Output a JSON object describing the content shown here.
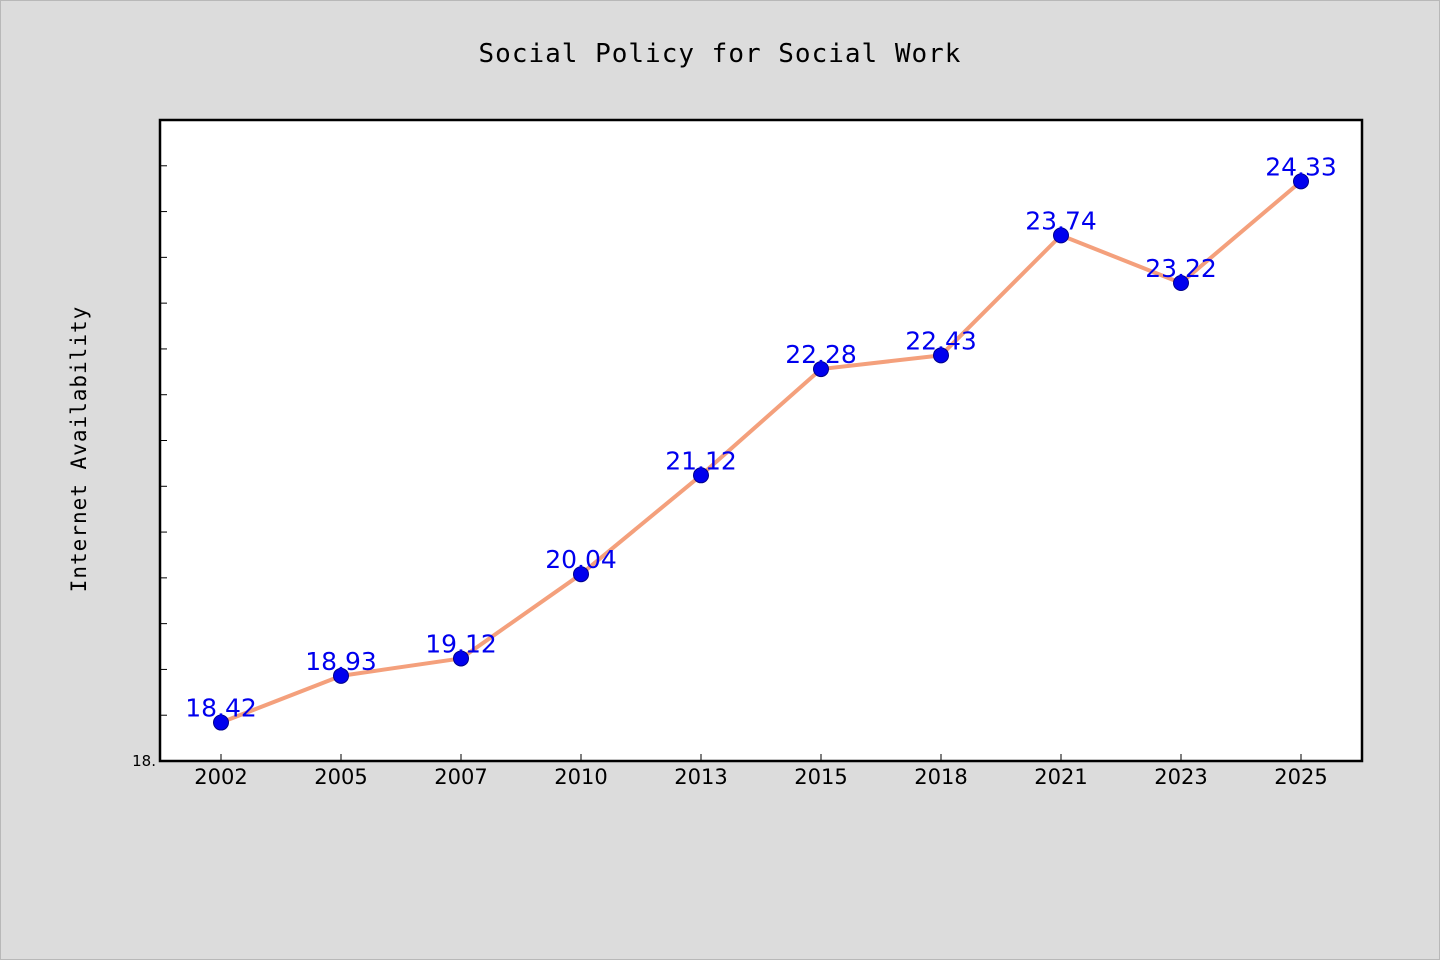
{
  "chart_data": {
    "type": "line",
    "title": "Social Policy for Social Work",
    "xlabel": "",
    "ylabel": "Internet Availability",
    "categories": [
      "2002",
      "2005",
      "2007",
      "2010",
      "2013",
      "2015",
      "2018",
      "2021",
      "2023",
      "2025"
    ],
    "series": [
      {
        "values": [
          18.42,
          18.93,
          19.12,
          20.04,
          21.12,
          22.28,
          22.43,
          23.74,
          23.22,
          24.33
        ],
        "data_labels": [
          "18.42",
          "18.93",
          "19.12",
          "20.04",
          "21.12",
          "22.28",
          "22.43",
          "23.74",
          "23.22",
          "24.33"
        ],
        "line_color": "#f4a07c",
        "marker_color": "#0000ee",
        "label_color": "#0000ee"
      }
    ],
    "y_tick_labels": [
      {
        "value": 18.0,
        "label": "18."
      }
    ],
    "ylim": [
      18.0,
      25.0
    ],
    "grid": false,
    "legend": "none"
  },
  "colors": {
    "background": "#dcdcdc",
    "plot_background": "#ffffff",
    "axis": "#000000"
  }
}
